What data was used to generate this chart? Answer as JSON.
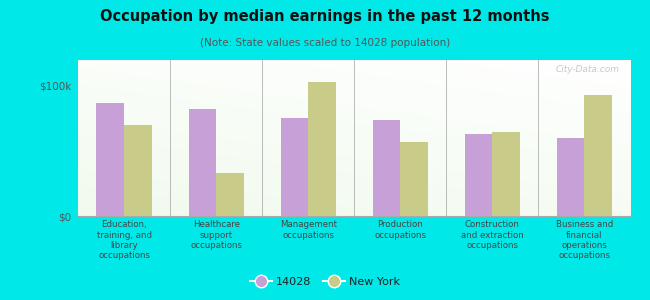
{
  "title": "Occupation by median earnings in the past 12 months",
  "subtitle": "(Note: State values scaled to 14028 population)",
  "categories": [
    "Education,\ntraining, and\nlibrary\noccupations",
    "Healthcare\nsupport\noccupations",
    "Management\noccupations",
    "Production\noccupations",
    "Construction\nand extraction\noccupations",
    "Business and\nfinancial\noperations\noccupations"
  ],
  "values_14028": [
    87000,
    82000,
    75000,
    74000,
    63000,
    60000
  ],
  "values_ny": [
    70000,
    33000,
    103000,
    57000,
    65000,
    93000
  ],
  "color_14028": "#c8a0d8",
  "color_ny": "#c8cc88",
  "bg_outer": "#00e8e8",
  "ylim": [
    0,
    120000
  ],
  "yticks": [
    0,
    100000
  ],
  "ytick_labels": [
    "$0",
    "$100k"
  ],
  "legend_14028": "14028",
  "legend_ny": "New York",
  "watermark": "City-Data.com"
}
